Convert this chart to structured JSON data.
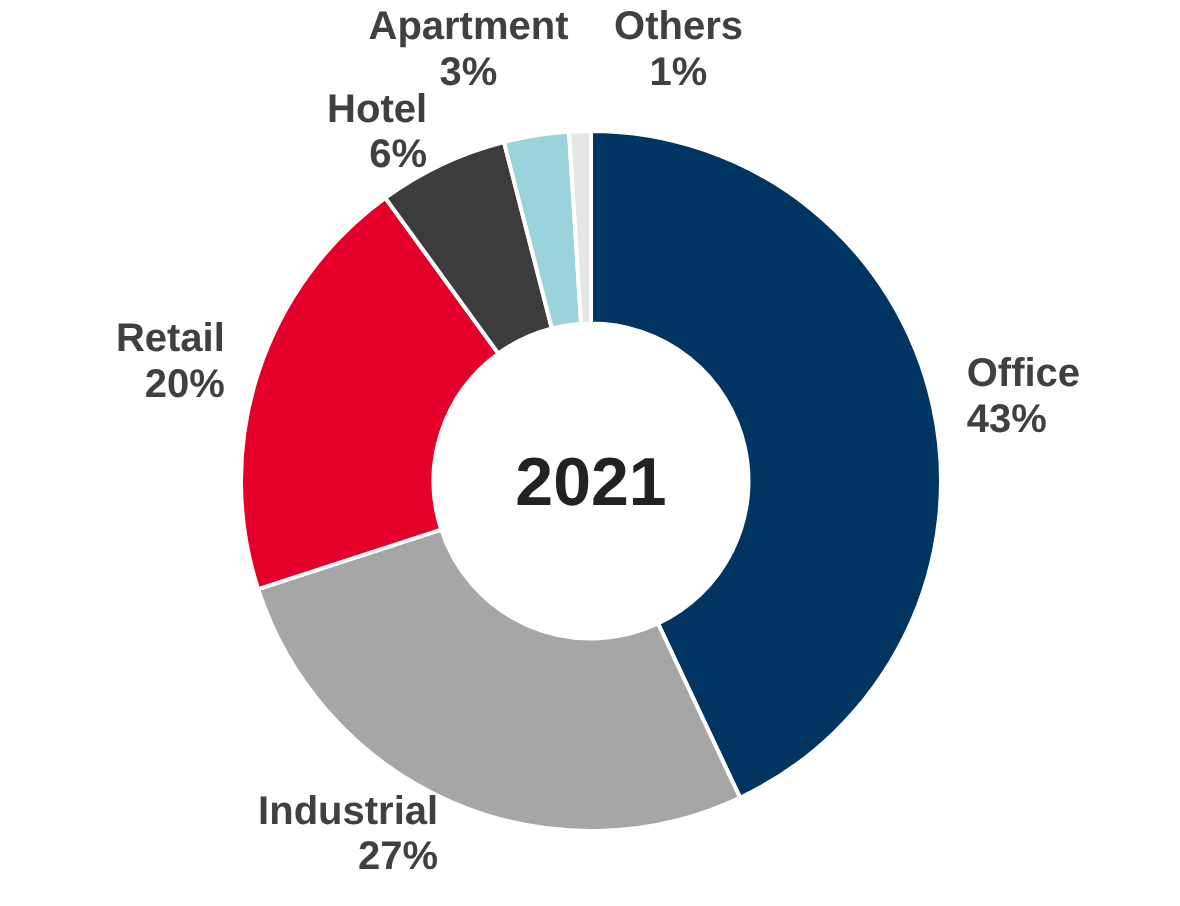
{
  "chart_data": {
    "type": "donut",
    "title": "2021",
    "categories": [
      "Office",
      "Industrial",
      "Retail",
      "Hotel",
      "Apartment",
      "Others"
    ],
    "values": [
      43,
      27,
      20,
      6,
      3,
      1
    ],
    "value_labels": [
      "43%",
      "27%",
      "20%",
      "6%",
      "3%",
      "1%"
    ],
    "colors": [
      "#003461",
      "#a6a6a6",
      "#e4002b",
      "#3c3c3c",
      "#9bd3dd",
      "#e6e6e6"
    ]
  }
}
